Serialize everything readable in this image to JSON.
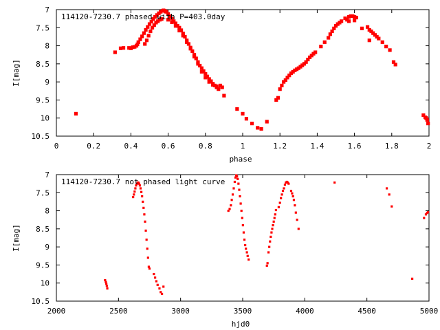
{
  "colors": {
    "points": "#ff0000",
    "axes": "#000000",
    "background": "#ffffff"
  },
  "chart_data": [
    {
      "type": "scatter",
      "title": "114120-7230.7 phased with P=403.0day",
      "xlabel": "phase",
      "ylabel": "I[mag]",
      "xlim": [
        0,
        2
      ],
      "ylim": [
        10.5,
        7
      ],
      "y_inverted": true,
      "grid": false,
      "legend": "none",
      "xticks": [
        0,
        0.2,
        0.4,
        0.6,
        0.8,
        1,
        1.2,
        1.4,
        1.6,
        1.8,
        2
      ],
      "xtick_labels": [
        "0",
        "0.2",
        "0.4",
        "0.6",
        "0.8",
        "1",
        "1.2",
        "1.4",
        "1.6",
        "1.8",
        "2"
      ],
      "yticks": [
        7,
        7.5,
        8,
        8.5,
        9,
        9.5,
        10,
        10.5
      ],
      "ytick_labels": [
        "7",
        "7.5",
        "8",
        "8.5",
        "9",
        "9.5",
        "10",
        "10.5"
      ],
      "points": [
        [
          0.105,
          9.88
        ],
        [
          0.315,
          8.18
        ],
        [
          0.345,
          8.07
        ],
        [
          0.36,
          8.06
        ],
        [
          0.39,
          8.06
        ],
        [
          0.4,
          8.07
        ],
        [
          0.41,
          8.04
        ],
        [
          0.42,
          8.03
        ],
        [
          0.43,
          8.0
        ],
        [
          0.435,
          7.96
        ],
        [
          0.44,
          7.9
        ],
        [
          0.45,
          7.82
        ],
        [
          0.46,
          7.74
        ],
        [
          0.47,
          7.65
        ],
        [
          0.48,
          7.56
        ],
        [
          0.49,
          7.48
        ],
        [
          0.5,
          7.4
        ],
        [
          0.51,
          7.33
        ],
        [
          0.52,
          7.26
        ],
        [
          0.53,
          7.2
        ],
        [
          0.54,
          7.15
        ],
        [
          0.55,
          7.1
        ],
        [
          0.56,
          7.06
        ],
        [
          0.57,
          7.03
        ],
        [
          0.575,
          7.02
        ],
        [
          0.58,
          7.03
        ],
        [
          0.585,
          7.05
        ],
        [
          0.59,
          7.06
        ],
        [
          0.475,
          7.95
        ],
        [
          0.485,
          7.85
        ],
        [
          0.495,
          7.72
        ],
        [
          0.505,
          7.6
        ],
        [
          0.515,
          7.5
        ],
        [
          0.525,
          7.43
        ],
        [
          0.535,
          7.36
        ],
        [
          0.545,
          7.32
        ],
        [
          0.555,
          7.28
        ],
        [
          0.565,
          7.26
        ],
        [
          0.6,
          7.12
        ],
        [
          0.61,
          7.18
        ],
        [
          0.62,
          7.25
        ],
        [
          0.63,
          7.32
        ],
        [
          0.64,
          7.38
        ],
        [
          0.65,
          7.45
        ],
        [
          0.66,
          7.5
        ],
        [
          0.67,
          7.57
        ],
        [
          0.68,
          7.66
        ],
        [
          0.69,
          7.75
        ],
        [
          0.7,
          7.85
        ],
        [
          0.71,
          7.95
        ],
        [
          0.72,
          8.05
        ],
        [
          0.73,
          8.15
        ],
        [
          0.74,
          8.25
        ],
        [
          0.75,
          8.35
        ],
        [
          0.76,
          8.45
        ],
        [
          0.77,
          8.55
        ],
        [
          0.78,
          8.62
        ],
        [
          0.79,
          8.7
        ],
        [
          0.8,
          8.78
        ],
        [
          0.81,
          8.85
        ],
        [
          0.82,
          8.92
        ],
        [
          0.83,
          8.98
        ],
        [
          0.84,
          9.05
        ],
        [
          0.85,
          9.1
        ],
        [
          0.86,
          9.12
        ],
        [
          0.6,
          7.28
        ],
        [
          0.62,
          7.35
        ],
        [
          0.64,
          7.45
        ],
        [
          0.66,
          7.58
        ],
        [
          0.68,
          7.72
        ],
        [
          0.7,
          7.9
        ],
        [
          0.72,
          8.08
        ],
        [
          0.74,
          8.3
        ],
        [
          0.76,
          8.5
        ],
        [
          0.78,
          8.72
        ],
        [
          0.8,
          8.88
        ],
        [
          0.82,
          9.0
        ],
        [
          0.84,
          9.08
        ],
        [
          0.86,
          9.15
        ],
        [
          0.87,
          9.2
        ],
        [
          0.88,
          9.1
        ],
        [
          0.89,
          9.15
        ],
        [
          0.9,
          9.38
        ],
        [
          0.97,
          9.75
        ],
        [
          1.0,
          9.88
        ],
        [
          1.02,
          10.02
        ],
        [
          1.05,
          10.15
        ],
        [
          1.08,
          10.27
        ],
        [
          1.1,
          10.3
        ],
        [
          1.13,
          10.1
        ],
        [
          1.18,
          9.5
        ],
        [
          1.19,
          9.44
        ],
        [
          1.2,
          9.2
        ],
        [
          1.21,
          9.1
        ],
        [
          1.22,
          9.0
        ],
        [
          1.23,
          8.95
        ],
        [
          1.24,
          8.88
        ],
        [
          1.25,
          8.82
        ],
        [
          1.26,
          8.76
        ],
        [
          1.27,
          8.72
        ],
        [
          1.28,
          8.68
        ],
        [
          1.29,
          8.65
        ],
        [
          1.3,
          8.62
        ],
        [
          1.31,
          8.58
        ],
        [
          1.32,
          8.54
        ],
        [
          1.33,
          8.5
        ],
        [
          1.34,
          8.45
        ],
        [
          1.35,
          8.38
        ],
        [
          1.36,
          8.32
        ],
        [
          1.37,
          8.27
        ],
        [
          1.38,
          8.22
        ],
        [
          1.39,
          8.18
        ],
        [
          1.42,
          8.02
        ],
        [
          1.44,
          7.9
        ],
        [
          1.46,
          7.78
        ],
        [
          1.47,
          7.68
        ],
        [
          1.48,
          7.6
        ],
        [
          1.49,
          7.52
        ],
        [
          1.5,
          7.45
        ],
        [
          1.51,
          7.4
        ],
        [
          1.52,
          7.36
        ],
        [
          1.53,
          7.32
        ],
        [
          1.55,
          7.24
        ],
        [
          1.57,
          7.2
        ],
        [
          1.58,
          7.18
        ],
        [
          1.59,
          7.18
        ],
        [
          1.6,
          7.2
        ],
        [
          1.61,
          7.22
        ],
        [
          1.6,
          7.3
        ],
        [
          1.56,
          7.28
        ],
        [
          1.57,
          7.32
        ],
        [
          1.64,
          7.52
        ],
        [
          1.67,
          7.48
        ],
        [
          1.68,
          7.56
        ],
        [
          1.69,
          7.6
        ],
        [
          1.7,
          7.65
        ],
        [
          1.71,
          7.7
        ],
        [
          1.72,
          7.75
        ],
        [
          1.73,
          7.8
        ],
        [
          1.75,
          7.9
        ],
        [
          1.77,
          8.02
        ],
        [
          1.79,
          8.12
        ],
        [
          1.81,
          8.45
        ],
        [
          1.82,
          8.52
        ],
        [
          1.68,
          7.85
        ],
        [
          1.97,
          9.92
        ],
        [
          1.98,
          9.98
        ],
        [
          1.99,
          10.05
        ],
        [
          1.995,
          10.15
        ],
        [
          1.985,
          10.0
        ]
      ]
    },
    {
      "type": "scatter",
      "title": "114120-7230.7 not phased light curve",
      "xlabel": "hjd0",
      "ylabel": "I[mag]",
      "xlim": [
        2000,
        5000
      ],
      "ylim": [
        10.5,
        7
      ],
      "y_inverted": true,
      "grid": false,
      "legend": "none",
      "xticks": [
        2000,
        2500,
        3000,
        3500,
        4000,
        4500,
        5000
      ],
      "xtick_labels": [
        "2000",
        "2500",
        "3000",
        "3500",
        "4000",
        "4500",
        "5000"
      ],
      "yticks": [
        7,
        7.5,
        8,
        8.5,
        9,
        9.5,
        10,
        10.5
      ],
      "ytick_labels": [
        "7",
        "7.5",
        "8",
        "8.5",
        "9",
        "9.5",
        "10",
        "10.5"
      ],
      "points": [
        [
          2392,
          9.92
        ],
        [
          2398,
          9.97
        ],
        [
          2402,
          10.02
        ],
        [
          2406,
          10.08
        ],
        [
          2410,
          10.15
        ],
        [
          2618,
          7.62
        ],
        [
          2624,
          7.55
        ],
        [
          2630,
          7.47
        ],
        [
          2636,
          7.38
        ],
        [
          2642,
          7.3
        ],
        [
          2648,
          7.25
        ],
        [
          2655,
          7.22
        ],
        [
          2660,
          7.22
        ],
        [
          2666,
          7.25
        ],
        [
          2672,
          7.3
        ],
        [
          2678,
          7.38
        ],
        [
          2684,
          7.48
        ],
        [
          2690,
          7.6
        ],
        [
          2696,
          7.75
        ],
        [
          2702,
          7.92
        ],
        [
          2708,
          8.1
        ],
        [
          2714,
          8.3
        ],
        [
          2720,
          8.55
        ],
        [
          2726,
          8.8
        ],
        [
          2732,
          9.05
        ],
        [
          2738,
          9.3
        ],
        [
          2744,
          9.55
        ],
        [
          2750,
          9.6
        ],
        [
          2785,
          9.75
        ],
        [
          2795,
          9.85
        ],
        [
          2805,
          9.95
        ],
        [
          2815,
          10.05
        ],
        [
          2830,
          10.15
        ],
        [
          2840,
          10.25
        ],
        [
          2850,
          10.3
        ],
        [
          2862,
          10.1
        ],
        [
          3385,
          8.0
        ],
        [
          3395,
          7.95
        ],
        [
          3405,
          7.85
        ],
        [
          3412,
          7.7
        ],
        [
          3420,
          7.55
        ],
        [
          3428,
          7.38
        ],
        [
          3436,
          7.2
        ],
        [
          3442,
          7.08
        ],
        [
          3448,
          7.02
        ],
        [
          3454,
          7.05
        ],
        [
          3460,
          7.12
        ],
        [
          3466,
          7.25
        ],
        [
          3472,
          7.42
        ],
        [
          3478,
          7.6
        ],
        [
          3484,
          7.8
        ],
        [
          3490,
          8.0
        ],
        [
          3496,
          8.2
        ],
        [
          3502,
          8.4
        ],
        [
          3508,
          8.6
        ],
        [
          3514,
          8.8
        ],
        [
          3520,
          8.95
        ],
        [
          3526,
          9.05
        ],
        [
          3534,
          9.15
        ],
        [
          3540,
          9.25
        ],
        [
          3548,
          9.35
        ],
        [
          3695,
          9.52
        ],
        [
          3700,
          9.45
        ],
        [
          3708,
          9.15
        ],
        [
          3714,
          9.0
        ],
        [
          3720,
          8.85
        ],
        [
          3726,
          8.72
        ],
        [
          3732,
          8.6
        ],
        [
          3738,
          8.5
        ],
        [
          3744,
          8.4
        ],
        [
          3750,
          8.3
        ],
        [
          3756,
          8.2
        ],
        [
          3762,
          8.1
        ],
        [
          3768,
          7.98
        ],
        [
          3790,
          7.9
        ],
        [
          3800,
          7.78
        ],
        [
          3808,
          7.65
        ],
        [
          3816,
          7.55
        ],
        [
          3824,
          7.45
        ],
        [
          3832,
          7.38
        ],
        [
          3840,
          7.28
        ],
        [
          3848,
          7.22
        ],
        [
          3856,
          7.2
        ],
        [
          3862,
          7.22
        ],
        [
          3870,
          7.25
        ],
        [
          3890,
          7.45
        ],
        [
          3898,
          7.52
        ],
        [
          3905,
          7.6
        ],
        [
          3912,
          7.7
        ],
        [
          3920,
          7.85
        ],
        [
          3928,
          8.05
        ],
        [
          3938,
          8.25
        ],
        [
          3950,
          8.5
        ],
        [
          4240,
          7.22
        ],
        [
          4660,
          7.38
        ],
        [
          4680,
          7.55
        ],
        [
          4700,
          7.88
        ],
        [
          4865,
          9.88
        ],
        [
          4960,
          8.2
        ],
        [
          4975,
          8.1
        ],
        [
          4985,
          8.06
        ],
        [
          4992,
          8.04
        ]
      ]
    }
  ]
}
